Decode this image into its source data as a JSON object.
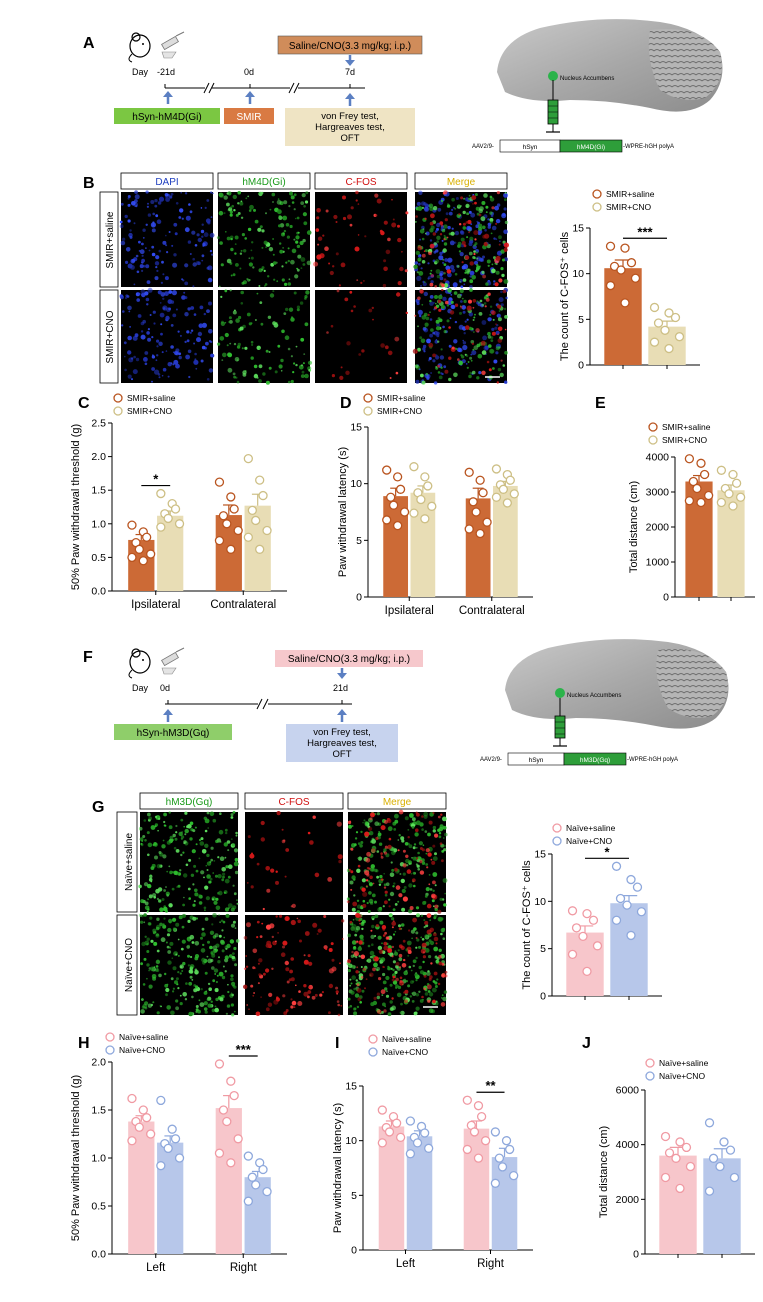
{
  "colors": {
    "smir_saline": "#cc6a36",
    "smir_cno": "#e8ddb5",
    "naive_saline": "#f7c6cb",
    "naive_cno": "#b7c7ea",
    "hm4d_label": "#7bc742",
    "smir_label": "#d97a43",
    "saline_cno_box_A": "#d08c5a",
    "tests_box_A": "#efe4c4",
    "saline_cno_box_F": "#f6c8cc",
    "tests_box_F": "#c7d3ee",
    "hm3d_label": "#8fce6a",
    "syringe": "#2e9e3a",
    "dapi_text": "#1f3fbf",
    "green_text": "#1a9a1a",
    "red_text": "#d01010",
    "merge_text": "#d9b000"
  },
  "panel_letters": {
    "A": "A",
    "B": "B",
    "C": "C",
    "D": "D",
    "E": "E",
    "F": "F",
    "G": "G",
    "H": "H",
    "I": "I",
    "J": "J"
  },
  "panelA": {
    "day_label": "Day",
    "days": [
      "-21d",
      "0d",
      "7d"
    ],
    "injection": "Saline/CNO(3.3 mg/kg; i.p.)",
    "virus": "hSyn-hM4D(Gi)",
    "surgery": "SMIR",
    "tests": [
      "von Frey test,",
      "Hargreaves test,",
      "OFT"
    ],
    "region": "Nucleus Accumbens",
    "construct_prefix": "AAV2/9-",
    "construct_promoter": "hSyn",
    "construct_gene": "hM4D(Gi)",
    "construct_suffix": "-WPRE-hGH polyA"
  },
  "panelB": {
    "columns": [
      "DAPI",
      "hM4D(Gi)",
      "C-FOS",
      "Merge"
    ],
    "rows": [
      "SMIR+saline",
      "SMIR+CNO"
    ]
  },
  "panelF": {
    "day_label": "Day",
    "days": [
      "0d",
      "21d"
    ],
    "injection": "Saline/CNO(3.3 mg/kg; i.p.)",
    "virus": "hSyn-hM3D(Gq)",
    "tests": [
      "von Frey test,",
      "Hargreaves test,",
      "OFT"
    ],
    "region": "Nucleus Accumbens",
    "construct_prefix": "AAV2/9-",
    "construct_promoter": "hSyn",
    "construct_gene": "hM3D(Gq)",
    "construct_suffix": "-WPRE-hGH polyA"
  },
  "panelG": {
    "columns": [
      "hM3D(Gq)",
      "C-FOS",
      "Merge"
    ],
    "rows": [
      "Naïve+saline",
      "Naïve+CNO"
    ]
  },
  "chart_data": [
    {
      "id": "B",
      "type": "bar",
      "ylabel": "The count of C-FOS⁺ cells",
      "ylim": [
        0,
        15
      ],
      "yticks": [
        0,
        5,
        10,
        15
      ],
      "categories": [
        ""
      ],
      "series": [
        {
          "name": "SMIR+saline",
          "values": [
            10.6
          ],
          "errors": [
            0.9
          ],
          "points": [
            [
              13,
              12.8,
              11.2,
              10.8,
              10.4,
              9.5,
              8.7,
              6.8
            ]
          ]
        },
        {
          "name": "SMIR+CNO",
          "values": [
            4.2
          ],
          "errors": [
            0.6
          ],
          "points": [
            [
              6.3,
              5.7,
              5.2,
              4.6,
              3.8,
              3.1,
              2.5,
              1.8
            ]
          ]
        }
      ],
      "sig": [
        {
          "label": "***"
        }
      ],
      "legend": "top-left"
    },
    {
      "id": "C",
      "type": "bar",
      "ylabel": "50% Paw withdrawal threshold (g)",
      "ylim": [
        0,
        2.5
      ],
      "yticks": [
        0.0,
        0.5,
        1.0,
        1.5,
        2.0,
        2.5
      ],
      "categories": [
        "Ipsilateral",
        "Contralateral"
      ],
      "series": [
        {
          "name": "SMIR+saline",
          "values": [
            0.76,
            1.13
          ],
          "errors": [
            0.08,
            0.15
          ],
          "points": [
            [
              0.98,
              0.88,
              0.8,
              0.72,
              0.62,
              0.55,
              0.5,
              0.45
            ],
            [
              1.62,
              1.4,
              1.22,
              1.12,
              1.0,
              0.9,
              0.75,
              0.62
            ]
          ]
        },
        {
          "name": "SMIR+CNO",
          "values": [
            1.12,
            1.27
          ],
          "errors": [
            0.07,
            0.17
          ],
          "points": [
            [
              1.45,
              1.3,
              1.22,
              1.15,
              1.08,
              1.0,
              0.95
            ],
            [
              1.97,
              1.65,
              1.42,
              1.2,
              1.05,
              0.9,
              0.8,
              0.62
            ]
          ]
        }
      ],
      "sig": [
        {
          "category": 0,
          "label": "*"
        }
      ],
      "legend": "top-left"
    },
    {
      "id": "D",
      "type": "bar",
      "ylabel": "Paw withdrawal latency (s)",
      "ylim": [
        0,
        15
      ],
      "yticks": [
        0,
        5,
        10,
        15
      ],
      "categories": [
        "Ipsilateral",
        "Contralateral"
      ],
      "series": [
        {
          "name": "SMIR+saline",
          "values": [
            8.9,
            8.7
          ],
          "errors": [
            0.7,
            0.9
          ],
          "points": [
            [
              11.2,
              10.6,
              9.5,
              8.8,
              8.1,
              7.5,
              6.8,
              6.3
            ],
            [
              11.0,
              10.3,
              9.2,
              8.4,
              7.5,
              6.6,
              6.0,
              5.6
            ]
          ]
        },
        {
          "name": "SMIR+CNO",
          "values": [
            9.2,
            9.8
          ],
          "errors": [
            0.6,
            0.4
          ],
          "points": [
            [
              11.5,
              10.6,
              9.8,
              9.2,
              8.6,
              8.0,
              7.4,
              6.9
            ],
            [
              11.3,
              10.8,
              10.3,
              9.9,
              9.5,
              9.1,
              8.8,
              8.3
            ]
          ]
        }
      ],
      "sig": [],
      "legend": "top-left"
    },
    {
      "id": "E",
      "type": "bar",
      "ylabel": "Total distance (cm)",
      "ylim": [
        0,
        4000
      ],
      "yticks": [
        0,
        1000,
        2000,
        3000,
        4000
      ],
      "categories": [
        ""
      ],
      "series": [
        {
          "name": "SMIR+saline",
          "values": [
            3300
          ],
          "errors": [
            170
          ],
          "points": [
            [
              3950,
              3820,
              3500,
              3300,
              3100,
              2900,
              2750,
              2700
            ]
          ]
        },
        {
          "name": "SMIR+CNO",
          "values": [
            3050
          ],
          "errors": [
            150
          ],
          "points": [
            [
              3620,
              3500,
              3250,
              3100,
              2950,
              2850,
              2700,
              2600
            ]
          ]
        }
      ],
      "sig": [],
      "legend": "top-left"
    },
    {
      "id": "G",
      "type": "bar",
      "ylabel": "The count of C-FOS⁺ cells",
      "ylim": [
        0,
        15
      ],
      "yticks": [
        0,
        5,
        10,
        15
      ],
      "categories": [
        ""
      ],
      "series": [
        {
          "name": "Naïve+saline",
          "values": [
            6.7
          ],
          "errors": [
            0.7
          ],
          "points": [
            [
              9.0,
              8.7,
              8.0,
              7.2,
              6.3,
              5.3,
              4.4,
              2.6
            ]
          ]
        },
        {
          "name": "Naïve+CNO",
          "values": [
            9.8
          ],
          "errors": [
            0.8
          ],
          "points": [
            [
              13.7,
              12.3,
              11.5,
              10.3,
              9.6,
              8.9,
              8.0,
              6.4
            ]
          ]
        }
      ],
      "sig": [
        {
          "label": "*"
        }
      ],
      "legend": "top-left"
    },
    {
      "id": "H",
      "type": "bar",
      "ylabel": "50% Paw withdrawal threshold (g)",
      "ylim": [
        0,
        2.0
      ],
      "yticks": [
        0.0,
        0.5,
        1.0,
        1.5,
        2.0
      ],
      "categories": [
        "Left",
        "Right"
      ],
      "series": [
        {
          "name": "Naïve+saline",
          "values": [
            1.38,
            1.52
          ],
          "errors": [
            0.06,
            0.13
          ],
          "points": [
            [
              1.62,
              1.5,
              1.42,
              1.38,
              1.32,
              1.25,
              1.18
            ],
            [
              1.98,
              1.8,
              1.65,
              1.5,
              1.38,
              1.2,
              1.05,
              0.95
            ]
          ]
        },
        {
          "name": "Naïve+CNO",
          "values": [
            1.16,
            0.8
          ],
          "errors": [
            0.07,
            0.06
          ],
          "points": [
            [
              1.6,
              1.3,
              1.2,
              1.15,
              1.1,
              1.0,
              0.92
            ],
            [
              1.02,
              0.95,
              0.88,
              0.8,
              0.72,
              0.65,
              0.55
            ]
          ]
        }
      ],
      "sig": [
        {
          "category": 1,
          "label": "***"
        }
      ],
      "legend": "top-left"
    },
    {
      "id": "I",
      "type": "bar",
      "ylabel": "Paw withdrawal latency (s)",
      "ylim": [
        0,
        15
      ],
      "yticks": [
        0,
        5,
        10,
        15
      ],
      "categories": [
        "Left",
        "Right"
      ],
      "series": [
        {
          "name": "Naïve+saline",
          "values": [
            11.3,
            11.1
          ],
          "errors": [
            0.5,
            0.7
          ],
          "points": [
            [
              12.8,
              12.2,
              11.6,
              11.2,
              10.8,
              10.3,
              9.8
            ],
            [
              13.7,
              13.2,
              12.2,
              11.4,
              10.8,
              10.0,
              9.2,
              8.4
            ]
          ]
        },
        {
          "name": "Naïve+CNO",
          "values": [
            10.4,
            8.5
          ],
          "errors": [
            0.5,
            0.8
          ],
          "points": [
            [
              11.8,
              11.3,
              10.7,
              10.3,
              9.8,
              9.3,
              8.8
            ],
            [
              10.8,
              10.0,
              9.2,
              8.4,
              7.6,
              6.8,
              6.1
            ]
          ]
        }
      ],
      "sig": [
        {
          "category": 1,
          "label": "**"
        }
      ],
      "legend": "top-left"
    },
    {
      "id": "J",
      "type": "bar",
      "ylabel": "Total distance (cm)",
      "ylim": [
        0,
        6000
      ],
      "yticks": [
        0,
        2000,
        4000,
        6000
      ],
      "categories": [
        ""
      ],
      "series": [
        {
          "name": "Naïve+saline",
          "values": [
            3600
          ],
          "errors": [
            300
          ],
          "points": [
            [
              4300,
              4100,
              3900,
              3700,
              3500,
              3200,
              2800,
              2400
            ]
          ]
        },
        {
          "name": "Naïve+CNO",
          "values": [
            3500
          ],
          "errors": [
            350
          ],
          "points": [
            [
              4800,
              4100,
              3800,
              3500,
              3200,
              2800,
              2300
            ]
          ]
        }
      ],
      "sig": [],
      "legend": "top-left"
    }
  ]
}
